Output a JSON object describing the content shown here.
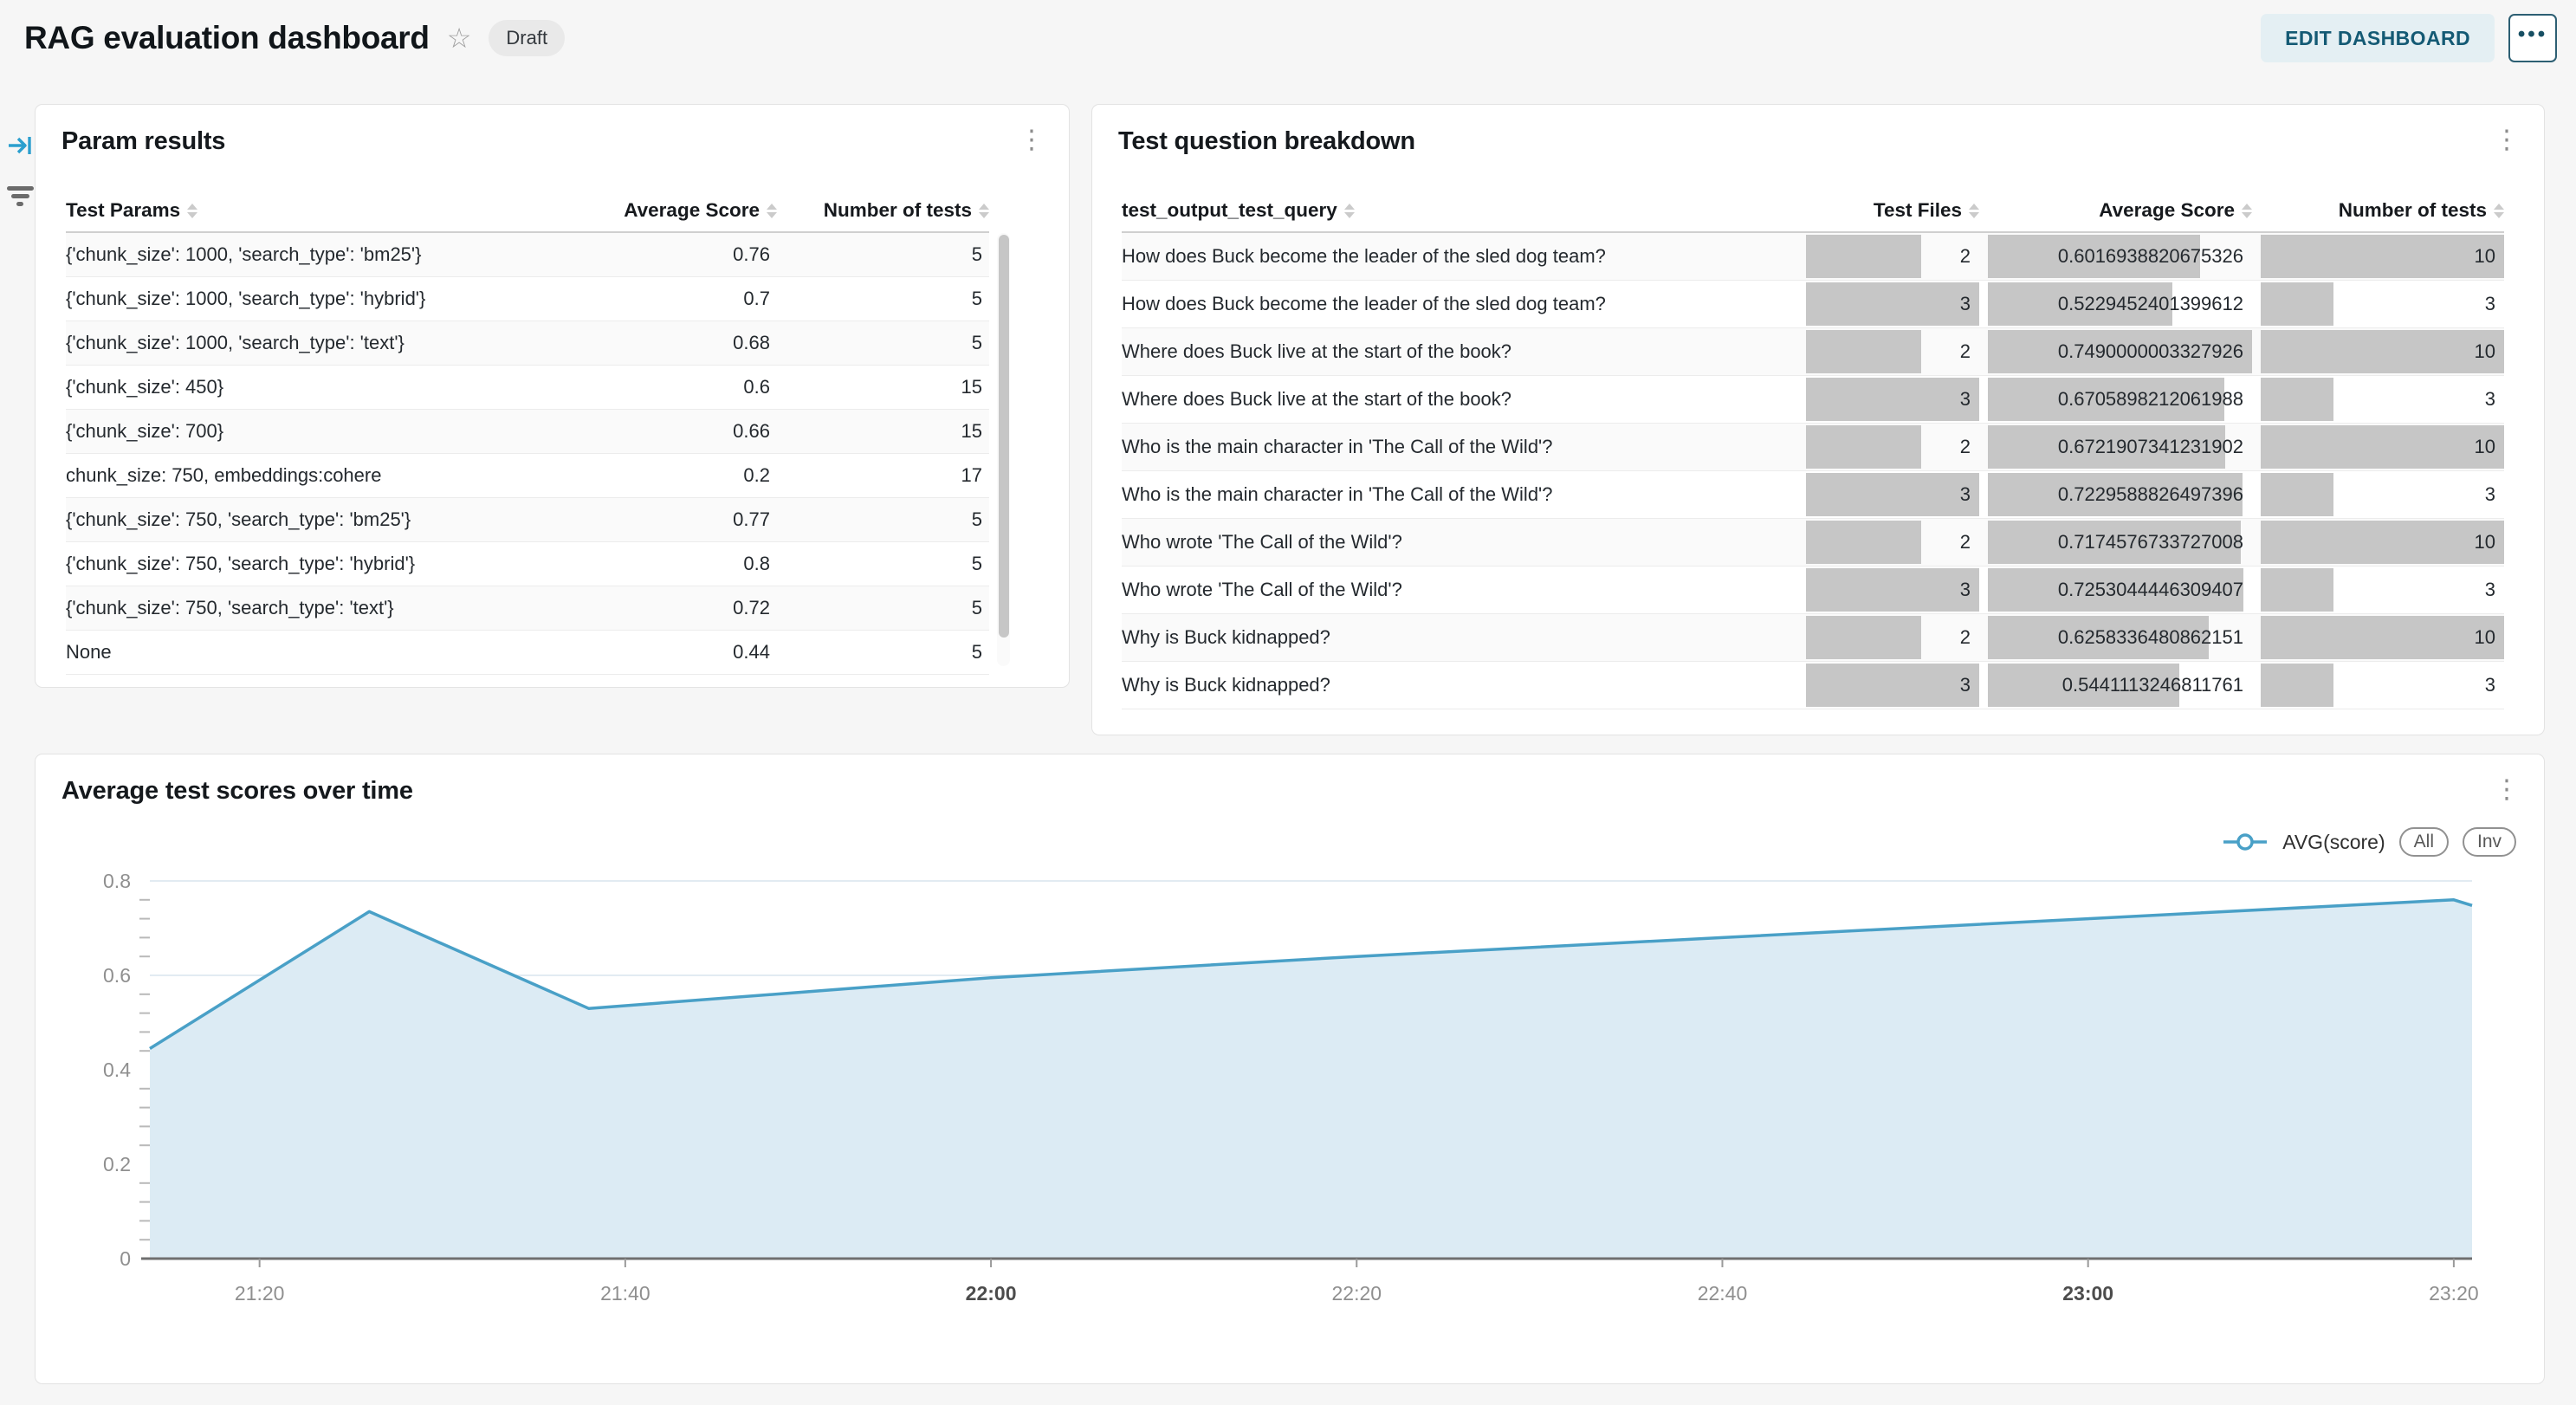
{
  "header": {
    "title": "RAG evaluation dashboard",
    "status_badge": "Draft",
    "edit_button": "EDIT DASHBOARD"
  },
  "icons": {
    "star": "☆",
    "kebab": "⋮",
    "more_options": "•••"
  },
  "panels": {
    "param_results": {
      "title": "Param results",
      "columns": [
        "Test Params",
        "Average Score",
        "Number of tests"
      ],
      "rows": [
        [
          "{'chunk_size': 1000, 'search_type': 'bm25'}",
          "0.76",
          "5"
        ],
        [
          "{'chunk_size': 1000, 'search_type': 'hybrid'}",
          "0.7",
          "5"
        ],
        [
          "{'chunk_size': 1000, 'search_type': 'text'}",
          "0.68",
          "5"
        ],
        [
          "{'chunk_size': 450}",
          "0.6",
          "15"
        ],
        [
          "{'chunk_size': 700}",
          "0.66",
          "15"
        ],
        [
          "chunk_size: 750, embeddings:cohere",
          "0.2",
          "17"
        ],
        [
          "{'chunk_size': 750, 'search_type': 'bm25'}",
          "0.77",
          "5"
        ],
        [
          "{'chunk_size': 750, 'search_type': 'hybrid'}",
          "0.8",
          "5"
        ],
        [
          "{'chunk_size': 750, 'search_type': 'text'}",
          "0.72",
          "5"
        ],
        [
          "None",
          "0.44",
          "5"
        ]
      ]
    },
    "test_question_breakdown": {
      "title": "Test question breakdown",
      "columns": [
        "test_output_test_query",
        "Test Files",
        "Average Score",
        "Number of tests"
      ],
      "bar_color": "#c6c6c6",
      "rows": [
        {
          "query": "How does Buck become the leader of the sled dog team?",
          "files": 2,
          "score": "0.6016938820675326",
          "tests": 10
        },
        {
          "query": "How does Buck become the leader of the sled dog team?",
          "files": 3,
          "score": "0.5229452401399612",
          "tests": 3
        },
        {
          "query": "Where does Buck live at the start of the book?",
          "files": 2,
          "score": "0.7490000003327926",
          "tests": 10
        },
        {
          "query": "Where does Buck live at the start of the book?",
          "files": 3,
          "score": "0.6705898212061988",
          "tests": 3
        },
        {
          "query": "Who is the main character in 'The Call of the Wild'?",
          "files": 2,
          "score": "0.6721907341231902",
          "tests": 10
        },
        {
          "query": "Who is the main character in 'The Call of the Wild'?",
          "files": 3,
          "score": "0.7229588826497396",
          "tests": 3
        },
        {
          "query": "Who wrote 'The Call of the Wild'?",
          "files": 2,
          "score": "0.7174576733727008",
          "tests": 10
        },
        {
          "query": "Who wrote 'The Call of the Wild'?",
          "files": 3,
          "score": "0.7253044446309407",
          "tests": 3
        },
        {
          "query": "Why is Buck kidnapped?",
          "files": 2,
          "score": "0.6258336480862151",
          "tests": 10
        },
        {
          "query": "Why is Buck kidnapped?",
          "files": 3,
          "score": "0.5441113246811761",
          "tests": 3
        }
      ]
    },
    "scores_chart": {
      "title": "Average test scores over time",
      "legend_label": "AVG(score)",
      "legend_buttons": [
        "All",
        "Inv"
      ]
    }
  },
  "chart_data": {
    "type": "area",
    "title": "Average test scores over time",
    "series": [
      {
        "name": "AVG(score)",
        "points": [
          [
            "21:14",
            0.445
          ],
          [
            "21:26",
            0.735
          ],
          [
            "21:38",
            0.53
          ],
          [
            "22:00",
            0.595
          ],
          [
            "22:20",
            0.64
          ],
          [
            "22:40",
            0.68
          ],
          [
            "23:00",
            0.72
          ],
          [
            "23:20",
            0.76
          ],
          [
            "23:21",
            0.748
          ]
        ]
      }
    ],
    "x_ticks": [
      "21:20",
      "21:40",
      "22:00",
      "22:20",
      "22:40",
      "23:00",
      "23:20"
    ],
    "x_ticks_bold": [
      "22:00",
      "23:00"
    ],
    "y_ticks": [
      0,
      0.2,
      0.4,
      0.6,
      0.8
    ],
    "ylim": [
      0,
      0.8
    ],
    "grid": "horizontal",
    "legend_position": "top-right",
    "colors": {
      "line": "#49a0c7",
      "fill": "#dcebf4"
    }
  }
}
